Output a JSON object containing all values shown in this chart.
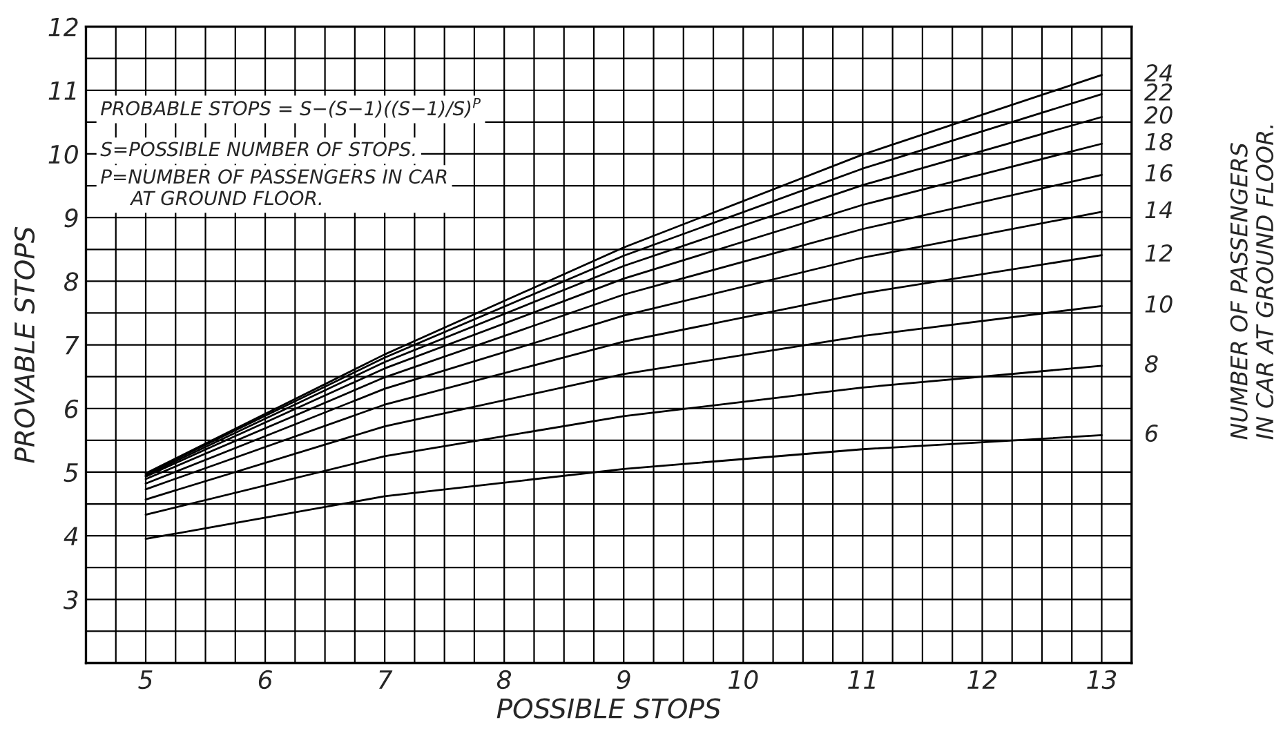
{
  "chart_data": {
    "type": "line",
    "xlabel": "POSSIBLE STOPS",
    "ylabel": "PROVABLE STOPS",
    "x": [
      5,
      7,
      9,
      11,
      13
    ],
    "series": [
      {
        "name": "6",
        "color": "#000000",
        "values": [
          3.95,
          4.62,
          5.05,
          5.36,
          5.58
        ]
      },
      {
        "name": "8",
        "color": "#000000",
        "values": [
          4.33,
          5.25,
          5.88,
          6.33,
          6.67
        ]
      },
      {
        "name": "10",
        "color": "#000000",
        "values": [
          4.57,
          5.72,
          6.54,
          7.14,
          7.61
        ]
      },
      {
        "name": "12",
        "color": "#000000",
        "values": [
          4.73,
          6.06,
          7.05,
          7.81,
          8.41
        ]
      },
      {
        "name": "14",
        "color": "#000000",
        "values": [
          4.82,
          6.31,
          7.46,
          8.37,
          9.09
        ]
      },
      {
        "name": "16",
        "color": "#000000",
        "values": [
          4.89,
          6.49,
          7.79,
          8.82,
          9.67
        ]
      },
      {
        "name": "18",
        "color": "#000000",
        "values": [
          4.93,
          6.63,
          8.04,
          9.2,
          10.16
        ]
      },
      {
        "name": "20",
        "color": "#000000",
        "values": [
          4.95,
          6.73,
          8.24,
          9.51,
          10.58
        ]
      },
      {
        "name": "22",
        "color": "#000000",
        "values": [
          4.97,
          6.8,
          8.4,
          9.77,
          10.94
        ]
      },
      {
        "name": "24",
        "color": "#000000",
        "values": [
          4.98,
          6.85,
          8.53,
          9.99,
          11.24
        ]
      }
    ],
    "xlim": [
      4.5,
      13.25
    ],
    "xticks": [
      {
        "value": 4.75,
        "label": null
      },
      5,
      {
        "value": 5.25,
        "label": null
      },
      {
        "value": 5.5,
        "label": null
      },
      {
        "value": 5.75,
        "label": null
      },
      6,
      {
        "value": 6.25,
        "label": null
      },
      {
        "value": 6.5,
        "label": null
      },
      {
        "value": 6.75,
        "label": null
      },
      7,
      {
        "value": 7.25,
        "label": null
      },
      {
        "value": 7.5,
        "label": null
      },
      {
        "value": 7.75,
        "label": null
      },
      8,
      {
        "value": 8.25,
        "label": null
      },
      {
        "value": 8.5,
        "label": null
      },
      {
        "value": 8.75,
        "label": null
      },
      9,
      {
        "value": 9.25,
        "label": null
      },
      {
        "value": 9.5,
        "label": null
      },
      {
        "value": 9.75,
        "label": null
      },
      10,
      {
        "value": 10.25,
        "label": null
      },
      {
        "value": 10.5,
        "label": null
      },
      {
        "value": 10.75,
        "label": null
      },
      11,
      {
        "value": 11.25,
        "label": null
      },
      {
        "value": 11.5,
        "label": null
      },
      {
        "value": 11.75,
        "label": null
      },
      12,
      {
        "value": 12.25,
        "label": null
      },
      {
        "value": 12.5,
        "label": null
      },
      {
        "value": 12.75,
        "label": null
      },
      13
    ],
    "ylim": [
      2,
      12
    ],
    "yticks": [
      {
        "value": 2.5,
        "label": null
      },
      3,
      {
        "value": 3.5,
        "label": null
      },
      4,
      {
        "value": 4.5,
        "label": null
      },
      5,
      {
        "value": 5.5,
        "label": null
      },
      6,
      {
        "value": 6.5,
        "label": null
      },
      7,
      {
        "value": 7.5,
        "label": null
      },
      8,
      {
        "value": 8.5,
        "label": null
      },
      9,
      {
        "value": 9.5,
        "label": null
      },
      10,
      {
        "value": 10.5,
        "label": null
      },
      11,
      {
        "value": 11.5,
        "label": null
      },
      12
    ],
    "grid": true,
    "legend": false,
    "marker": "none",
    "line_style": "solid",
    "annotations": [
      "PROBABLE STOPS = S−(S−1)((S−1)/S)$^{P}$",
      "S=POSSIBLE NUMBER OF STOPS.",
      "P=NUMBER OF PASSENGERS IN CAR\n     AT GROUND FLOOR.",
      "NUMBER OF PASSENGERS\nIN CAR AT GROUND FLOOR."
    ]
  }
}
